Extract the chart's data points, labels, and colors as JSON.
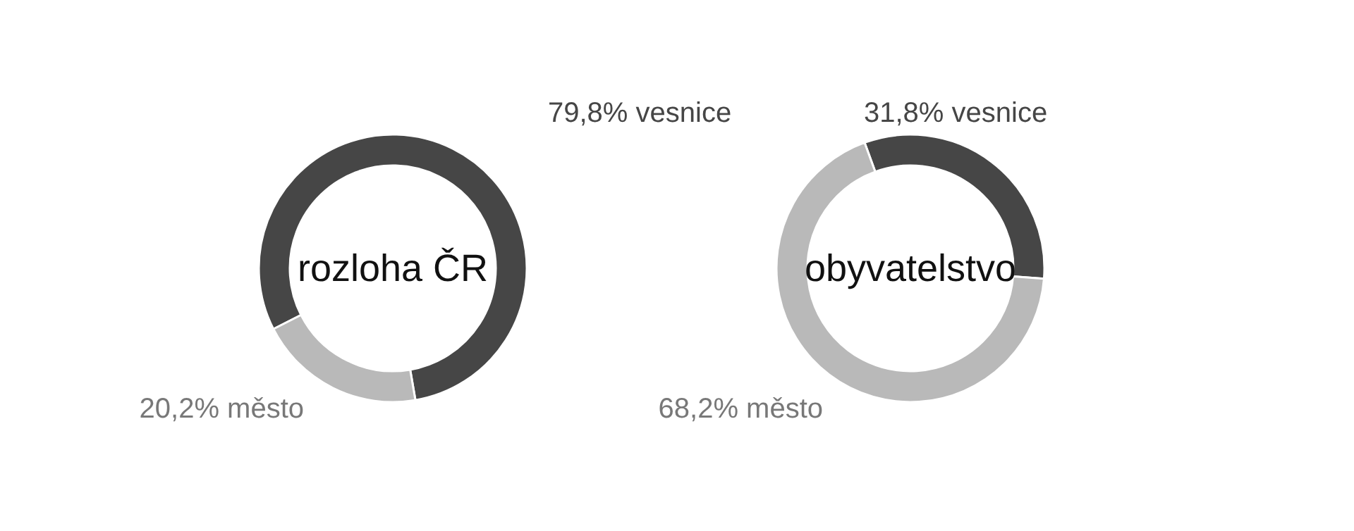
{
  "chart_data": [
    {
      "type": "donut",
      "title": "rozloha ČR",
      "categories": [
        "vesnice",
        "město"
      ],
      "values": [
        79.8,
        20.2
      ],
      "colors": [
        "#464646",
        "#b9b9b9"
      ],
      "value_labels": [
        "79,8%",
        "20,2%"
      ]
    },
    {
      "type": "donut",
      "title": "obyvatelstvo",
      "categories": [
        "vesnice",
        "město"
      ],
      "values": [
        31.8,
        68.2
      ],
      "colors": [
        "#464646",
        "#b9b9b9"
      ],
      "value_labels": [
        "31,8%",
        "68,2%"
      ]
    }
  ]
}
